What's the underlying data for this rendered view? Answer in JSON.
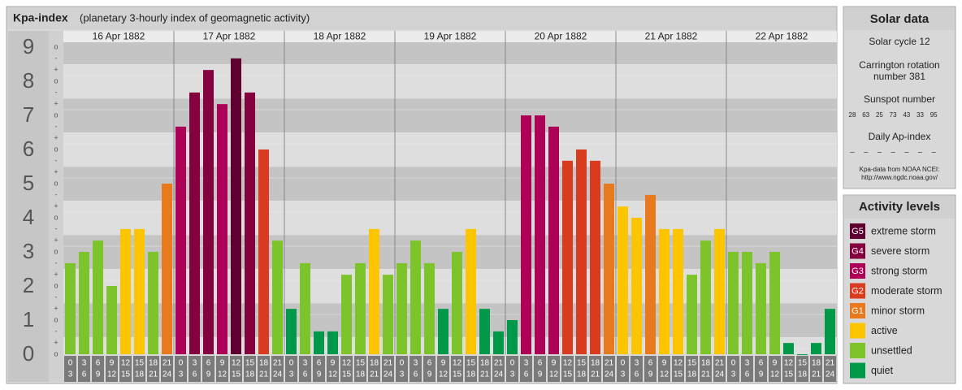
{
  "chart_data": {
    "type": "bar",
    "title": "Kpa-index",
    "subtitle": "(planetary 3-hourly index of geomagnetic activity)",
    "days": [
      "16 Apr 1882",
      "17 Apr 1882",
      "18 Apr 1882",
      "19 Apr 1882",
      "20 Apr 1882",
      "21 Apr 1882",
      "22 Apr 1882"
    ],
    "hour_labels": [
      [
        0,
        3
      ],
      [
        3,
        6
      ],
      [
        6,
        9
      ],
      [
        9,
        12
      ],
      [
        12,
        15
      ],
      [
        15,
        18
      ],
      [
        18,
        21
      ],
      [
        21,
        24
      ]
    ],
    "kp_marks": [
      "o",
      "+",
      "-"
    ],
    "values": [
      2.67,
      3,
      3.33,
      2,
      3.67,
      3.67,
      3,
      5,
      6.67,
      7.67,
      8.33,
      7.33,
      8.67,
      7.67,
      6,
      3.33,
      1.33,
      2.67,
      0.67,
      0.67,
      2.33,
      2.67,
      3.67,
      2.33,
      2.67,
      3.33,
      2.67,
      1.33,
      3,
      3.67,
      1.33,
      0.67,
      1,
      7,
      7,
      6.67,
      5.67,
      6,
      5.67,
      5,
      4.33,
      4,
      4.67,
      3.67,
      3.67,
      2.33,
      3.33,
      3.67,
      3,
      3,
      2.67,
      3,
      0.33,
      0,
      0.33,
      1.33
    ],
    "colors": [
      "#7cc42a",
      "#7cc42a",
      "#7cc42a",
      "#7cc42a",
      "#fcc500",
      "#fcc500",
      "#7cc42a",
      "#e8791d",
      "#ad0057",
      "#85003f",
      "#85003f",
      "#ad0057",
      "#5e0030",
      "#85003f",
      "#d93b1f",
      "#7cc42a",
      "#00994a",
      "#7cc42a",
      "#00994a",
      "#00994a",
      "#7cc42a",
      "#7cc42a",
      "#fcc500",
      "#7cc42a",
      "#7cc42a",
      "#7cc42a",
      "#7cc42a",
      "#00994a",
      "#7cc42a",
      "#fcc500",
      "#00994a",
      "#00994a",
      "#00994a",
      "#ad0057",
      "#ad0057",
      "#ad0057",
      "#d93b1f",
      "#d93b1f",
      "#d93b1f",
      "#e8791d",
      "#fcc500",
      "#fcc500",
      "#e8791d",
      "#fcc500",
      "#fcc500",
      "#7cc42a",
      "#7cc42a",
      "#fcc500",
      "#7cc42a",
      "#7cc42a",
      "#7cc42a",
      "#7cc42a",
      "#00994a",
      "#00994a",
      "#00994a",
      "#00994a"
    ],
    "ylim": [
      0,
      9
    ],
    "yticks": [
      0,
      1,
      2,
      3,
      4,
      5,
      6,
      7,
      8,
      9
    ]
  },
  "solar_data": {
    "title": "Solar data",
    "cycle": "Solar cycle 12",
    "carrington": [
      "Carrington rotation",
      "number 381"
    ],
    "sunspot_label": "Sunspot number",
    "sunspot_numbers": [
      28,
      63,
      25,
      73,
      43,
      33,
      95
    ],
    "ap_label": "Daily Ap-index",
    "ap_values": [
      "–",
      "–",
      "–",
      "–",
      "–",
      "–",
      "–"
    ],
    "source": [
      "Kpa-data from NOAA NCEI:",
      "http://www.ngdc.noaa.gov/"
    ]
  },
  "activity_levels": {
    "title": "Activity levels",
    "items": [
      {
        "code": "G5",
        "name": "extreme storm",
        "color": "#5e0030"
      },
      {
        "code": "G4",
        "name": "severe storm",
        "color": "#85003f"
      },
      {
        "code": "G3",
        "name": "strong storm",
        "color": "#ad0057"
      },
      {
        "code": "G2",
        "name": "moderate storm",
        "color": "#d93b1f"
      },
      {
        "code": "G1",
        "name": "minor storm",
        "color": "#e8791d"
      },
      {
        "name": "active",
        "color": "#fcc500"
      },
      {
        "name": "unsettled",
        "color": "#7cc42a"
      },
      {
        "name": "quiet",
        "color": "#00994a"
      }
    ]
  }
}
